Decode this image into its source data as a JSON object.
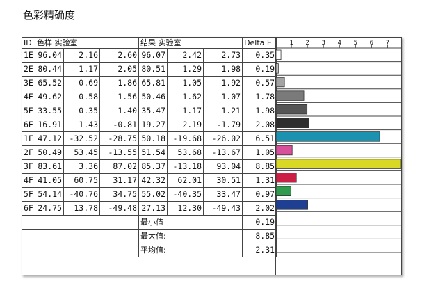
{
  "title": "色彩精确度",
  "headers": {
    "id": "ID",
    "sample": "色样 实验室",
    "result": "结果 实验室",
    "delta": "Delta E"
  },
  "chart_data": {
    "type": "bar",
    "orientation": "horizontal",
    "xlim": [
      0,
      7.85
    ],
    "xticks": [
      "1",
      "2",
      "3",
      "4",
      "5",
      "6",
      "7"
    ],
    "rows": [
      {
        "id": "1E",
        "s": [
          "96.04",
          "2.16",
          "2.60"
        ],
        "r": [
          "96.07",
          "2.42",
          "2.73"
        ],
        "de": "0.35",
        "value": 0.35,
        "color": "#ffffff"
      },
      {
        "id": "2E",
        "s": [
          "80.44",
          "1.17",
          "2.05"
        ],
        "r": [
          "80.51",
          "1.29",
          "1.98"
        ],
        "de": "0.19",
        "value": 0.19,
        "color": "#c8c8c8"
      },
      {
        "id": "3E",
        "s": [
          "65.52",
          "0.69",
          "1.86"
        ],
        "r": [
          "65.81",
          "1.05",
          "1.92"
        ],
        "de": "0.57",
        "value": 0.57,
        "color": "#a3a3a3"
      },
      {
        "id": "4E",
        "s": [
          "49.62",
          "0.58",
          "1.56"
        ],
        "r": [
          "50.46",
          "1.62",
          "1.07"
        ],
        "de": "1.78",
        "value": 1.78,
        "color": "#7a7a7a"
      },
      {
        "id": "5E",
        "s": [
          "33.55",
          "0.35",
          "1.40"
        ],
        "r": [
          "35.47",
          "1.17",
          "1.21"
        ],
        "de": "1.98",
        "value": 1.98,
        "color": "#555555"
      },
      {
        "id": "6E",
        "s": [
          "16.91",
          "1.43",
          "-0.81"
        ],
        "r": [
          "19.27",
          "2.19",
          "-1.79"
        ],
        "de": "2.08",
        "value": 2.08,
        "color": "#2e2e2e"
      },
      {
        "id": "1F",
        "s": [
          "47.12",
          "-32.52",
          "-28.75"
        ],
        "r": [
          "50.18",
          "-19.68",
          "-26.02"
        ],
        "de": "6.51",
        "value": 6.51,
        "color": "#1b93b0"
      },
      {
        "id": "2F",
        "s": [
          "50.49",
          "53.45",
          "-13.55"
        ],
        "r": [
          "51.54",
          "53.68",
          "-13.67"
        ],
        "de": "1.05",
        "value": 1.05,
        "color": "#d9509a"
      },
      {
        "id": "3F",
        "s": [
          "83.61",
          "3.36",
          "87.02"
        ],
        "r": [
          "85.37",
          "-13.18",
          "93.04"
        ],
        "de": "8.85",
        "value": 8.85,
        "color": "#d8d825"
      },
      {
        "id": "4F",
        "s": [
          "41.05",
          "60.75",
          "31.17"
        ],
        "r": [
          "42.32",
          "62.01",
          "30.51"
        ],
        "de": "1.31",
        "value": 1.31,
        "color": "#cc1f45"
      },
      {
        "id": "5F",
        "s": [
          "54.14",
          "-40.76",
          "34.75"
        ],
        "r": [
          "55.02",
          "-40.35",
          "33.47"
        ],
        "de": "0.97",
        "value": 0.97,
        "color": "#2f9b4c"
      },
      {
        "id": "6F",
        "s": [
          "24.75",
          "13.78",
          "-49.48"
        ],
        "r": [
          "27.13",
          "12.30",
          "-49.43"
        ],
        "de": "2.02",
        "value": 2.02,
        "color": "#1f3f92"
      }
    ]
  },
  "summary": [
    {
      "label": "最小值",
      "value": "0.19"
    },
    {
      "label": "最大值:",
      "value": "8.85"
    },
    {
      "label": "平均值:",
      "value": "2.31"
    }
  ]
}
